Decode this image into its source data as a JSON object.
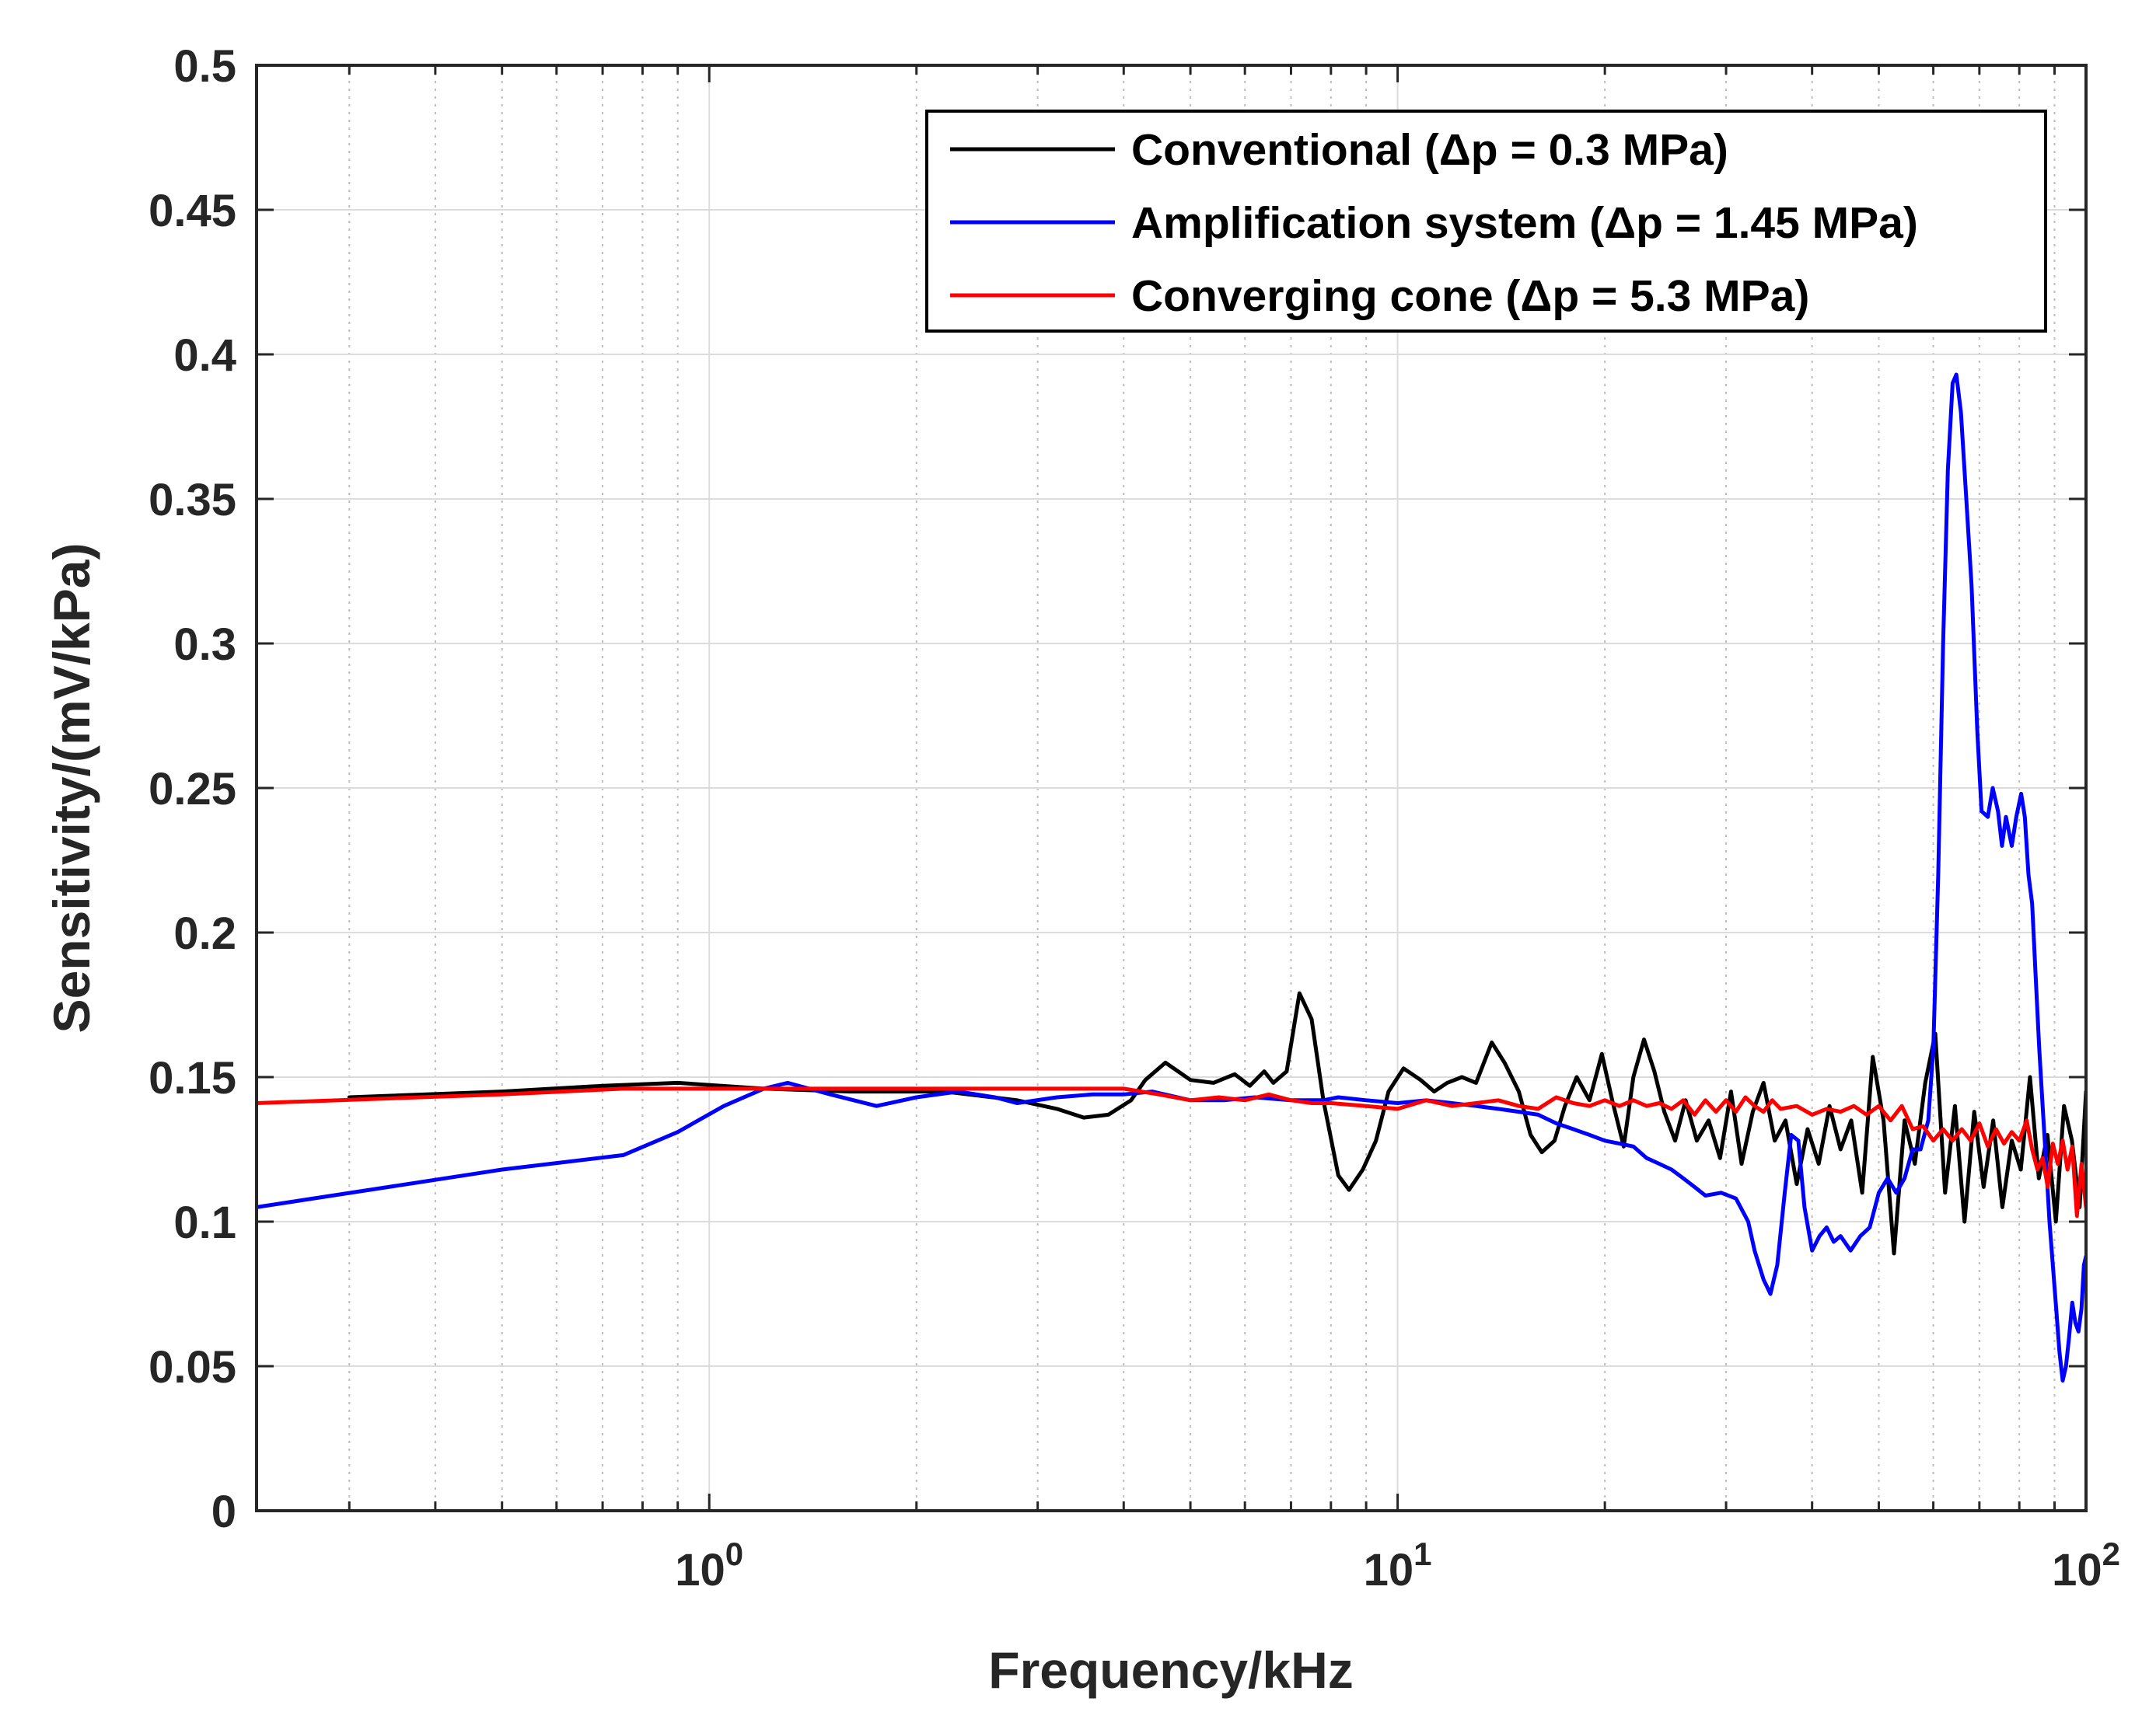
{
  "chart_data": {
    "type": "line",
    "title": "",
    "xlabel": "Frequency/kHz",
    "ylabel": "Sensitivity/(mV/kPa)",
    "xscale": "log",
    "xlim": [
      0.22,
      100
    ],
    "ylim": [
      0,
      0.5
    ],
    "grid": true,
    "legend_position": "top-right",
    "x_tick_labels": [
      {
        "base": "10",
        "exp": "0",
        "value": 1
      },
      {
        "base": "10",
        "exp": "1",
        "value": 10
      },
      {
        "base": "10",
        "exp": "2",
        "value": 100
      }
    ],
    "y_ticks": [
      0,
      0.05,
      0.1,
      0.15,
      0.2,
      0.25,
      0.3,
      0.35,
      0.4,
      0.45,
      0.5
    ],
    "y_tick_labels": [
      "0",
      "0.05",
      "0.1",
      "0.15",
      "0.2",
      "0.25",
      "0.3",
      "0.35",
      "0.4",
      "0.45",
      "0.5"
    ],
    "series": [
      {
        "name": "Conventional (Δp = 0.3 MPa)",
        "color": "#000000",
        "points": [
          [
            0.3,
            0.143
          ],
          [
            0.5,
            0.145
          ],
          [
            0.7,
            0.147
          ],
          [
            0.9,
            0.148
          ],
          [
            1.2,
            0.146
          ],
          [
            1.6,
            0.145
          ],
          [
            2.2,
            0.145
          ],
          [
            2.8,
            0.142
          ],
          [
            3.2,
            0.139
          ],
          [
            3.5,
            0.136
          ],
          [
            3.8,
            0.137
          ],
          [
            4.1,
            0.142
          ],
          [
            4.3,
            0.149
          ],
          [
            4.6,
            0.155
          ],
          [
            5.0,
            0.149
          ],
          [
            5.4,
            0.148
          ],
          [
            5.8,
            0.151
          ],
          [
            6.1,
            0.147
          ],
          [
            6.4,
            0.152
          ],
          [
            6.6,
            0.148
          ],
          [
            6.9,
            0.152
          ],
          [
            7.2,
            0.179
          ],
          [
            7.5,
            0.17
          ],
          [
            7.8,
            0.142
          ],
          [
            8.2,
            0.116
          ],
          [
            8.5,
            0.111
          ],
          [
            8.9,
            0.118
          ],
          [
            9.3,
            0.128
          ],
          [
            9.7,
            0.145
          ],
          [
            10.2,
            0.153
          ],
          [
            10.8,
            0.149
          ],
          [
            11.3,
            0.145
          ],
          [
            11.8,
            0.148
          ],
          [
            12.4,
            0.15
          ],
          [
            13.0,
            0.148
          ],
          [
            13.7,
            0.162
          ],
          [
            14.3,
            0.155
          ],
          [
            15.0,
            0.145
          ],
          [
            15.6,
            0.13
          ],
          [
            16.2,
            0.124
          ],
          [
            16.9,
            0.128
          ],
          [
            17.5,
            0.14
          ],
          [
            18.2,
            0.15
          ],
          [
            19.0,
            0.142
          ],
          [
            19.8,
            0.158
          ],
          [
            20.5,
            0.142
          ],
          [
            21.3,
            0.126
          ],
          [
            22.0,
            0.15
          ],
          [
            22.8,
            0.163
          ],
          [
            23.6,
            0.152
          ],
          [
            24.4,
            0.138
          ],
          [
            25.3,
            0.128
          ],
          [
            26.2,
            0.142
          ],
          [
            27.2,
            0.128
          ],
          [
            28.3,
            0.135
          ],
          [
            29.4,
            0.122
          ],
          [
            30.5,
            0.145
          ],
          [
            31.6,
            0.12
          ],
          [
            32.8,
            0.138
          ],
          [
            34.0,
            0.148
          ],
          [
            35.3,
            0.128
          ],
          [
            36.6,
            0.135
          ],
          [
            38.0,
            0.113
          ],
          [
            39.4,
            0.132
          ],
          [
            40.9,
            0.12
          ],
          [
            42.4,
            0.14
          ],
          [
            44.0,
            0.125
          ],
          [
            45.6,
            0.135
          ],
          [
            47.3,
            0.11
          ],
          [
            49.0,
            0.157
          ],
          [
            50.8,
            0.135
          ],
          [
            52.6,
            0.089
          ],
          [
            54.5,
            0.135
          ],
          [
            56.4,
            0.12
          ],
          [
            58.4,
            0.148
          ],
          [
            60.4,
            0.165
          ],
          [
            62.4,
            0.11
          ],
          [
            64.5,
            0.14
          ],
          [
            66.6,
            0.1
          ],
          [
            68.8,
            0.138
          ],
          [
            71.0,
            0.112
          ],
          [
            73.3,
            0.135
          ],
          [
            75.6,
            0.105
          ],
          [
            78.0,
            0.128
          ],
          [
            80.4,
            0.118
          ],
          [
            82.9,
            0.15
          ],
          [
            85.4,
            0.115
          ],
          [
            87.9,
            0.13
          ],
          [
            90.4,
            0.1
          ],
          [
            92.9,
            0.14
          ],
          [
            95.4,
            0.128
          ],
          [
            97.9,
            0.105
          ],
          [
            100.0,
            0.145
          ]
        ]
      },
      {
        "name": "Amplification system (Δp = 1.45 MPa)",
        "color": "#0000ff",
        "points": [
          [
            0.22,
            0.105
          ],
          [
            0.5,
            0.118
          ],
          [
            0.75,
            0.123
          ],
          [
            0.9,
            0.131
          ],
          [
            1.05,
            0.14
          ],
          [
            1.2,
            0.146
          ],
          [
            1.3,
            0.148
          ],
          [
            1.5,
            0.144
          ],
          [
            1.75,
            0.14
          ],
          [
            2.0,
            0.143
          ],
          [
            2.3,
            0.145
          ],
          [
            2.6,
            0.143
          ],
          [
            2.8,
            0.141
          ],
          [
            3.2,
            0.143
          ],
          [
            3.6,
            0.144
          ],
          [
            4.0,
            0.144
          ],
          [
            4.4,
            0.145
          ],
          [
            5.0,
            0.142
          ],
          [
            5.6,
            0.142
          ],
          [
            6.2,
            0.143
          ],
          [
            7.0,
            0.142
          ],
          [
            7.8,
            0.142
          ],
          [
            8.2,
            0.143
          ],
          [
            9.0,
            0.142
          ],
          [
            10.0,
            0.141
          ],
          [
            11.0,
            0.142
          ],
          [
            12.0,
            0.141
          ],
          [
            13.0,
            0.14
          ],
          [
            14.0,
            0.139
          ],
          [
            15.0,
            0.138
          ],
          [
            16.0,
            0.137
          ],
          [
            17.0,
            0.134
          ],
          [
            18.0,
            0.132
          ],
          [
            19.0,
            0.13
          ],
          [
            20.0,
            0.128
          ],
          [
            21.0,
            0.127
          ],
          [
            22.0,
            0.126
          ],
          [
            23.0,
            0.122
          ],
          [
            24.0,
            0.12
          ],
          [
            25.0,
            0.118
          ],
          [
            26.0,
            0.115
          ],
          [
            27.0,
            0.112
          ],
          [
            28.0,
            0.109
          ],
          [
            29.5,
            0.11
          ],
          [
            31.0,
            0.108
          ],
          [
            32.3,
            0.1
          ],
          [
            33.0,
            0.09
          ],
          [
            34.0,
            0.08
          ],
          [
            34.8,
            0.075
          ],
          [
            35.6,
            0.085
          ],
          [
            36.5,
            0.11
          ],
          [
            37.3,
            0.13
          ],
          [
            38.2,
            0.128
          ],
          [
            39.0,
            0.105
          ],
          [
            40.0,
            0.09
          ],
          [
            41.0,
            0.095
          ],
          [
            42.0,
            0.098
          ],
          [
            43.0,
            0.093
          ],
          [
            44.0,
            0.095
          ],
          [
            45.5,
            0.09
          ],
          [
            47.0,
            0.095
          ],
          [
            48.5,
            0.098
          ],
          [
            50.0,
            0.11
          ],
          [
            51.5,
            0.115
          ],
          [
            53.0,
            0.11
          ],
          [
            54.5,
            0.115
          ],
          [
            56.0,
            0.125
          ],
          [
            57.5,
            0.125
          ],
          [
            59.0,
            0.135
          ],
          [
            60.0,
            0.16
          ],
          [
            61.0,
            0.22
          ],
          [
            62.0,
            0.3
          ],
          [
            63.0,
            0.36
          ],
          [
            64.0,
            0.39
          ],
          [
            64.8,
            0.393
          ],
          [
            65.8,
            0.38
          ],
          [
            67.0,
            0.35
          ],
          [
            68.2,
            0.32
          ],
          [
            69.5,
            0.27
          ],
          [
            70.5,
            0.242
          ],
          [
            72.0,
            0.24
          ],
          [
            73.2,
            0.25
          ],
          [
            74.5,
            0.242
          ],
          [
            75.5,
            0.23
          ],
          [
            76.5,
            0.24
          ],
          [
            78.0,
            0.23
          ],
          [
            79.2,
            0.24
          ],
          [
            80.5,
            0.248
          ],
          [
            81.5,
            0.24
          ],
          [
            82.5,
            0.22
          ],
          [
            83.5,
            0.21
          ],
          [
            84.5,
            0.185
          ],
          [
            85.5,
            0.16
          ],
          [
            86.5,
            0.14
          ],
          [
            87.5,
            0.12
          ],
          [
            88.5,
            0.1
          ],
          [
            89.5,
            0.085
          ],
          [
            90.5,
            0.07
          ],
          [
            91.5,
            0.055
          ],
          [
            92.5,
            0.045
          ],
          [
            93.5,
            0.05
          ],
          [
            94.5,
            0.06
          ],
          [
            95.5,
            0.072
          ],
          [
            96.5,
            0.065
          ],
          [
            97.5,
            0.062
          ],
          [
            98.5,
            0.07
          ],
          [
            99.3,
            0.085
          ],
          [
            100.0,
            0.088
          ]
        ]
      },
      {
        "name": "Converging cone (Δp = 5.3 MPa)",
        "color": "#ff0000",
        "points": [
          [
            0.22,
            0.141
          ],
          [
            0.5,
            0.144
          ],
          [
            0.75,
            0.146
          ],
          [
            1.0,
            0.146
          ],
          [
            1.5,
            0.146
          ],
          [
            2.0,
            0.146
          ],
          [
            2.5,
            0.146
          ],
          [
            3.0,
            0.146
          ],
          [
            3.5,
            0.146
          ],
          [
            4.0,
            0.146
          ],
          [
            4.5,
            0.144
          ],
          [
            5.0,
            0.142
          ],
          [
            5.5,
            0.143
          ],
          [
            6.0,
            0.142
          ],
          [
            6.5,
            0.144
          ],
          [
            7.0,
            0.142
          ],
          [
            7.5,
            0.141
          ],
          [
            8.0,
            0.141
          ],
          [
            9.0,
            0.14
          ],
          [
            10.0,
            0.139
          ],
          [
            11.0,
            0.142
          ],
          [
            12.0,
            0.14
          ],
          [
            13.0,
            0.141
          ],
          [
            14.0,
            0.142
          ],
          [
            15.0,
            0.14
          ],
          [
            16.0,
            0.139
          ],
          [
            17.0,
            0.143
          ],
          [
            18.0,
            0.141
          ],
          [
            19.0,
            0.14
          ],
          [
            20.0,
            0.142
          ],
          [
            21.0,
            0.14
          ],
          [
            22.0,
            0.142
          ],
          [
            23.0,
            0.14
          ],
          [
            24.0,
            0.141
          ],
          [
            25.0,
            0.139
          ],
          [
            26.0,
            0.142
          ],
          [
            27.0,
            0.137
          ],
          [
            28.0,
            0.142
          ],
          [
            29.0,
            0.138
          ],
          [
            30.0,
            0.142
          ],
          [
            31.0,
            0.138
          ],
          [
            32.0,
            0.143
          ],
          [
            33.0,
            0.14
          ],
          [
            34.0,
            0.138
          ],
          [
            35.0,
            0.142
          ],
          [
            36.0,
            0.139
          ],
          [
            38.0,
            0.14
          ],
          [
            40.0,
            0.137
          ],
          [
            42.0,
            0.139
          ],
          [
            44.0,
            0.138
          ],
          [
            46.0,
            0.14
          ],
          [
            48.0,
            0.137
          ],
          [
            50.0,
            0.14
          ],
          [
            52.0,
            0.135
          ],
          [
            54.0,
            0.14
          ],
          [
            56.0,
            0.132
          ],
          [
            58.0,
            0.133
          ],
          [
            60.0,
            0.128
          ],
          [
            62.0,
            0.132
          ],
          [
            64.0,
            0.128
          ],
          [
            66.0,
            0.132
          ],
          [
            68.0,
            0.128
          ],
          [
            70.0,
            0.134
          ],
          [
            72.0,
            0.126
          ],
          [
            74.0,
            0.132
          ],
          [
            76.0,
            0.127
          ],
          [
            78.0,
            0.131
          ],
          [
            80.0,
            0.128
          ],
          [
            82.0,
            0.135
          ],
          [
            83.5,
            0.125
          ],
          [
            85.0,
            0.118
          ],
          [
            86.5,
            0.122
          ],
          [
            88.0,
            0.112
          ],
          [
            89.5,
            0.127
          ],
          [
            91.0,
            0.12
          ],
          [
            92.5,
            0.128
          ],
          [
            94.0,
            0.118
          ],
          [
            95.5,
            0.126
          ],
          [
            97.0,
            0.102
          ],
          [
            98.5,
            0.12
          ],
          [
            100.0,
            0.105
          ]
        ]
      }
    ]
  }
}
